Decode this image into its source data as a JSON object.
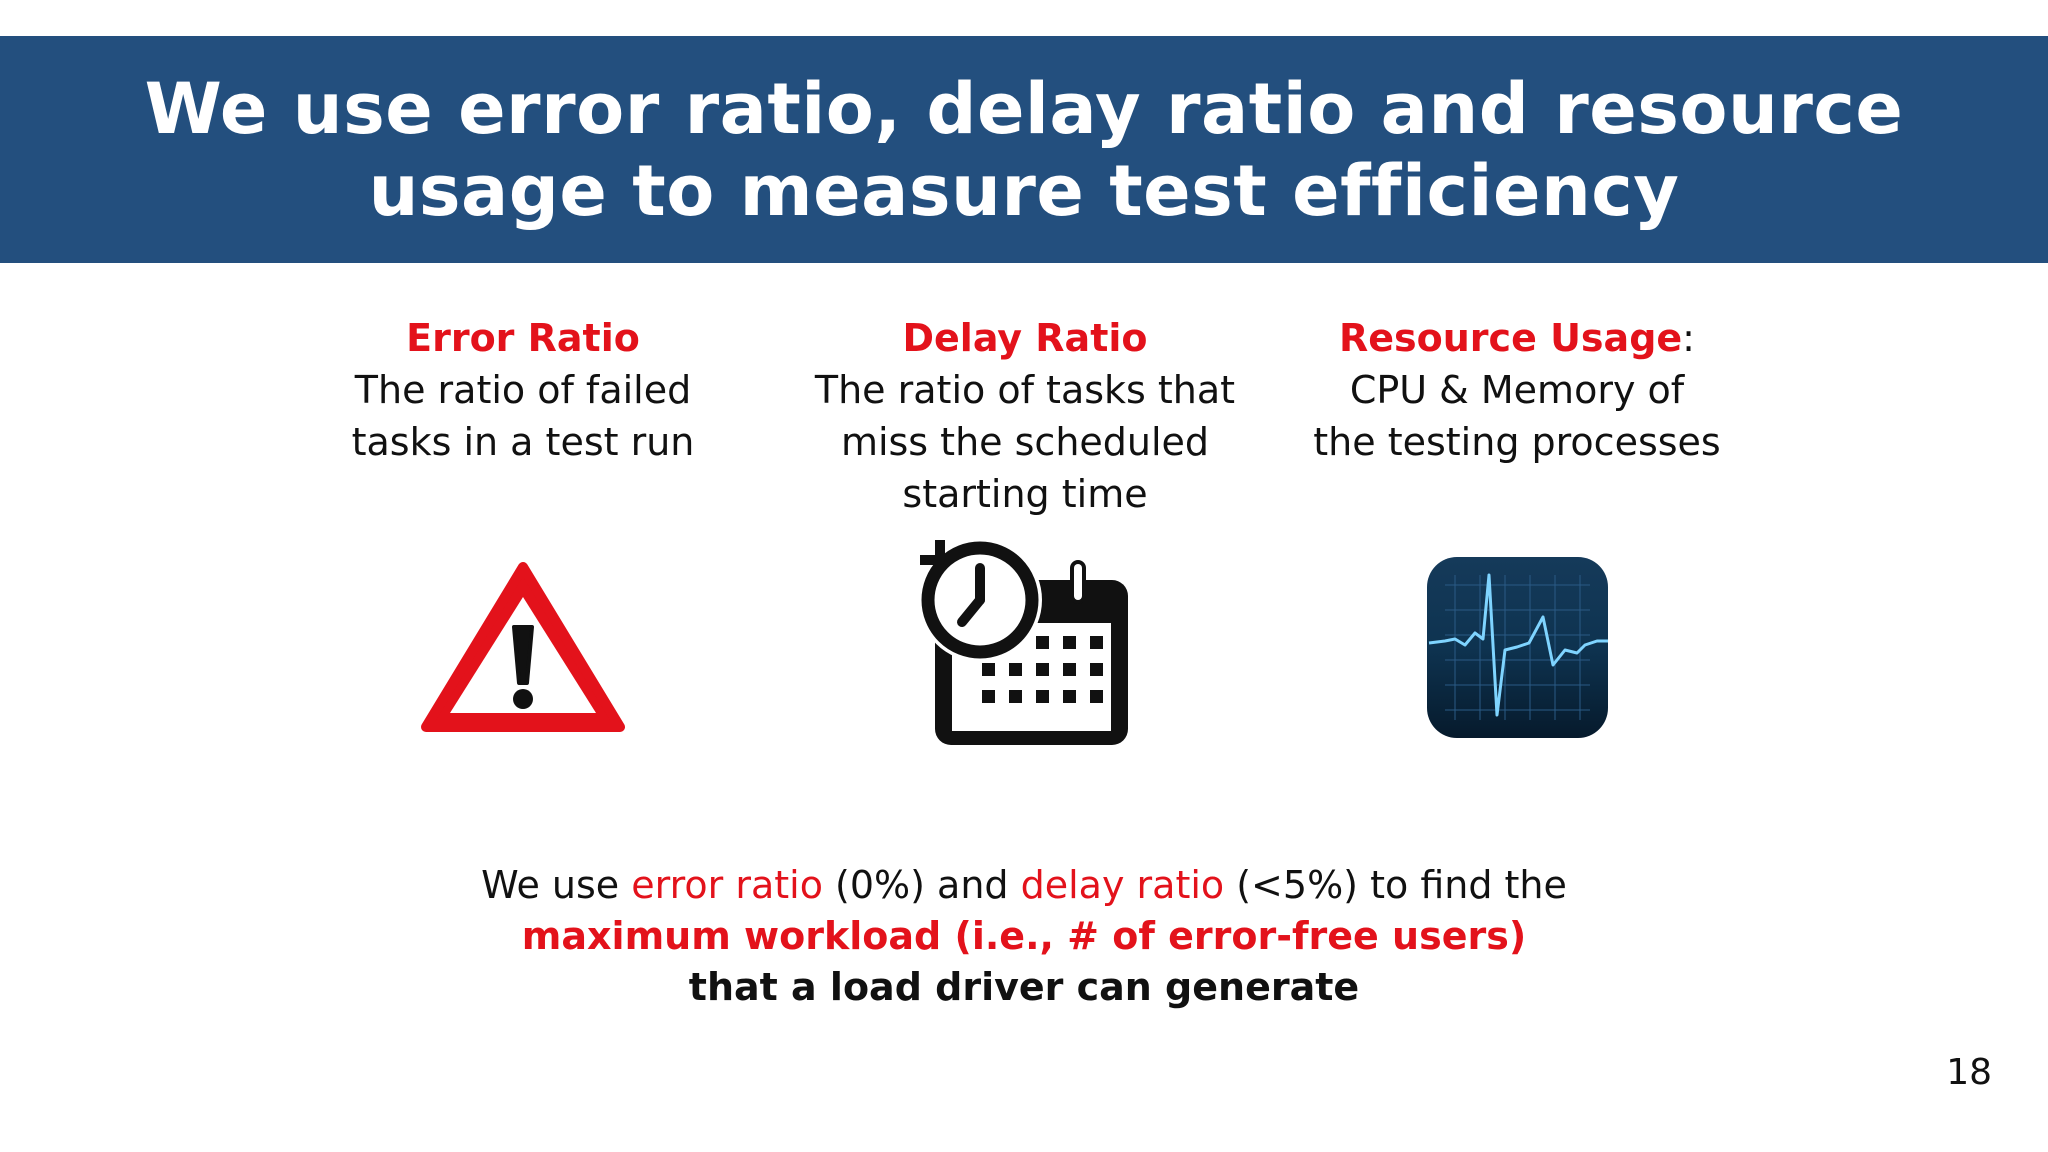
{
  "title": {
    "line1": "We use error ratio, delay ratio and resource",
    "line2": "usage to measure test efficiency"
  },
  "metrics": [
    {
      "name": "Error Ratio",
      "suffix": "",
      "desc_lines": [
        "The ratio of failed",
        "tasks in a test run"
      ],
      "icon": "warning-triangle-icon"
    },
    {
      "name": "Delay Ratio",
      "suffix": "",
      "desc_lines": [
        "The ratio of tasks that",
        "miss the scheduled",
        "starting time"
      ],
      "icon": "clock-calendar-icon"
    },
    {
      "name": "Resource Usage",
      "suffix": ":",
      "desc_lines": [
        "CPU & Memory of",
        "the testing processes"
      ],
      "icon": "heartbeat-monitor-icon"
    }
  ],
  "bottom": {
    "p1": "We use ",
    "p2": "error ratio",
    "p3": " (0%) and ",
    "p4": "delay ratio",
    "p5": " (<5%) to find the",
    "line2": "maximum workload (i.e., # of error-free users)",
    "line3": "that a load driver can generate"
  },
  "page_number": "18",
  "colors": {
    "title_band": "#234f7e",
    "accent_red": "#e3121b",
    "text": "#111111"
  }
}
